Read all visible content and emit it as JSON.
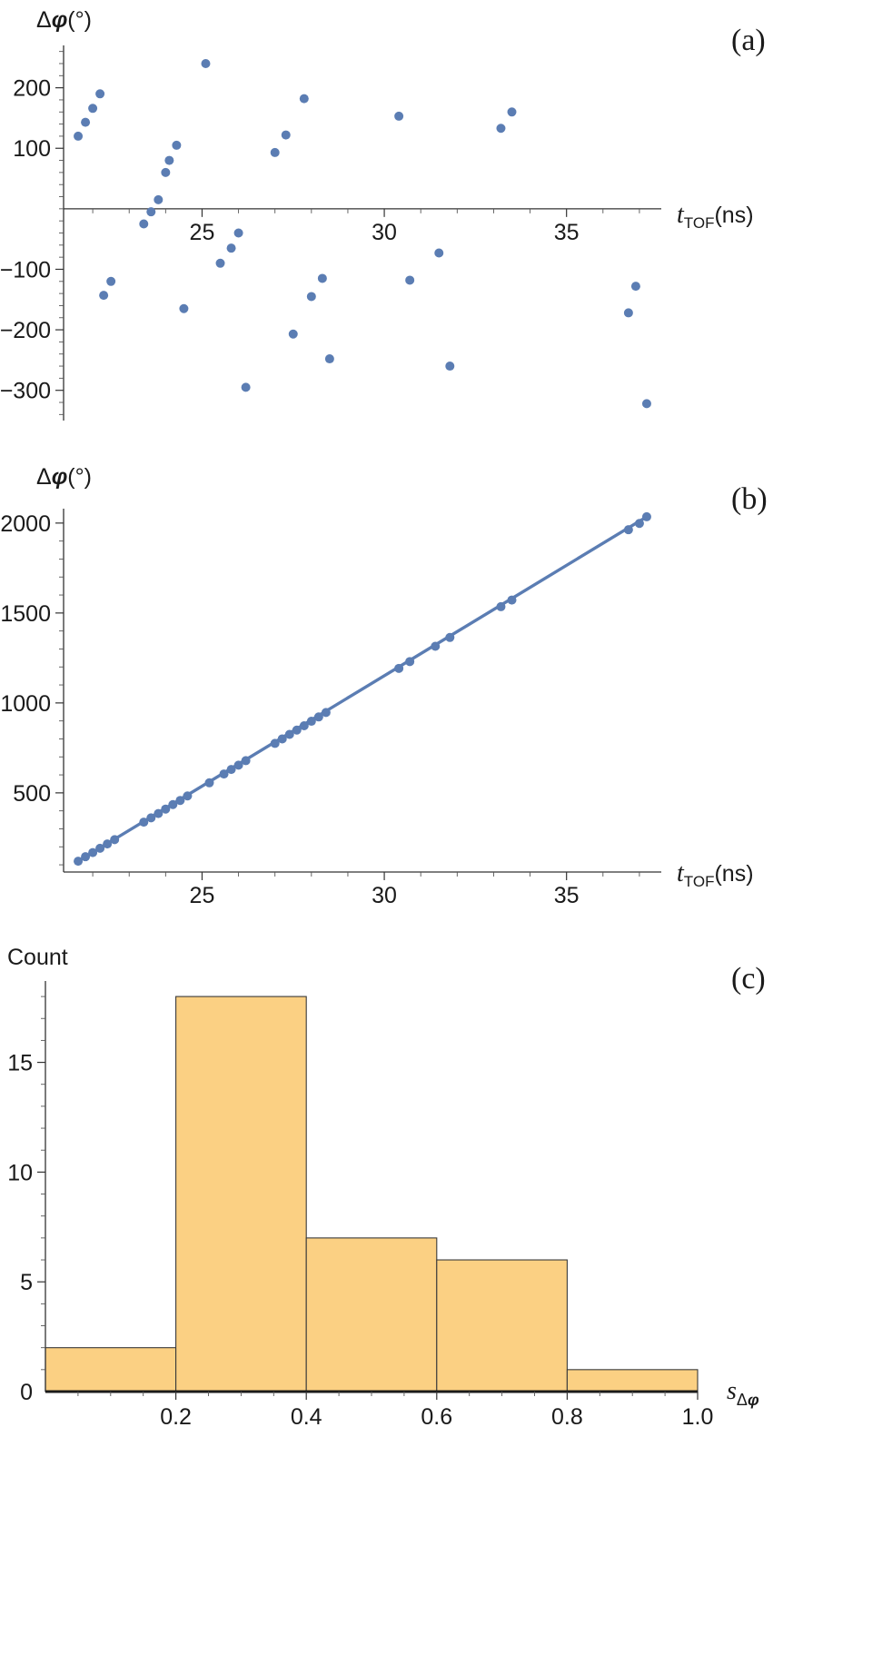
{
  "chart_data": [
    {
      "type": "scatter",
      "panel": "(a)",
      "ylabel_prefix": "Δ",
      "ylabel_var": "φ",
      "ylabel_suffix": "(°)",
      "xlabel_var": "t",
      "xlabel_sub": "TOF",
      "xlabel_unit": "(ns)",
      "xlim": [
        21.2,
        37.6
      ],
      "ylim": [
        -350,
        270
      ],
      "xticks": [
        25,
        30,
        35
      ],
      "yticks": [
        -300,
        -200,
        -100,
        100,
        200
      ],
      "color": "#5b7db3",
      "series": [
        {
          "x": [
            21.6,
            21.8,
            22.0,
            22.2,
            22.3,
            22.5,
            23.4,
            23.6,
            23.8,
            24.0,
            24.1,
            24.3,
            24.5,
            25.1,
            25.5,
            25.8,
            26.0,
            26.2,
            27.0,
            27.3,
            27.5,
            27.8,
            28.0,
            28.3,
            28.5,
            30.4,
            30.7,
            31.5,
            31.8,
            33.2,
            33.5,
            36.7,
            36.9,
            37.2
          ],
          "y": [
            120,
            143,
            166,
            190,
            -143,
            -120,
            -25,
            -5,
            15,
            60,
            80,
            105,
            -165,
            240,
            -90,
            -65,
            -40,
            -295,
            93,
            122,
            -207,
            182,
            -145,
            -115,
            -248,
            153,
            -118,
            -73,
            -260,
            133,
            160,
            -172,
            -128,
            -322
          ]
        }
      ]
    },
    {
      "type": "scatter",
      "panel": "(b)",
      "ylabel_prefix": "Δ",
      "ylabel_var": "φ",
      "ylabel_suffix": "(°)",
      "xlabel_var": "t",
      "xlabel_sub": "TOF",
      "xlabel_unit": "(ns)",
      "xlim": [
        21.2,
        37.6
      ],
      "ylim": [
        60,
        2080
      ],
      "xticks": [
        25,
        30,
        35
      ],
      "yticks": [
        500,
        1000,
        1500,
        2000
      ],
      "color": "#5b7db3",
      "fit_line": {
        "x": [
          21.6,
          37.2
        ],
        "y": [
          120,
          2035
        ]
      },
      "series": [
        {
          "x": [
            21.6,
            21.8,
            22.0,
            22.2,
            22.4,
            22.6,
            23.4,
            23.6,
            23.8,
            24.0,
            24.2,
            24.4,
            24.6,
            25.2,
            25.6,
            25.8,
            26.0,
            26.2,
            27.0,
            27.2,
            27.4,
            27.6,
            27.8,
            28.0,
            28.2,
            28.4,
            30.4,
            30.7,
            31.4,
            31.8,
            33.2,
            33.5,
            36.7,
            37.0,
            37.2
          ],
          "y": [
            120,
            145,
            168,
            192,
            216,
            240,
            337,
            361,
            385,
            410,
            435,
            458,
            483,
            556,
            605,
            630,
            654,
            679,
            775,
            800,
            825,
            849,
            873,
            898,
            922,
            947,
            1192,
            1230,
            1315,
            1364,
            1535,
            1572,
            1963,
            1998,
            2035
          ]
        }
      ]
    },
    {
      "type": "bar",
      "panel": "(c)",
      "ylabel": "Count",
      "xlabel_var": "s",
      "xlabel_sub_prefix": "Δ",
      "xlabel_sub_var": "φ",
      "xlim": [
        0,
        1.0
      ],
      "ylim": [
        0,
        18.5
      ],
      "xticks": [
        "0.2",
        "0.4",
        "0.6",
        "0.8",
        "1.0"
      ],
      "yticks": [
        5,
        10,
        15
      ],
      "color": "#fbd083",
      "bins": [
        {
          "start": 0.0,
          "end": 0.2,
          "count": 2
        },
        {
          "start": 0.2,
          "end": 0.4,
          "count": 18
        },
        {
          "start": 0.4,
          "end": 0.6,
          "count": 7
        },
        {
          "start": 0.6,
          "end": 0.8,
          "count": 6
        },
        {
          "start": 0.8,
          "end": 1.0,
          "count": 1
        }
      ]
    }
  ]
}
